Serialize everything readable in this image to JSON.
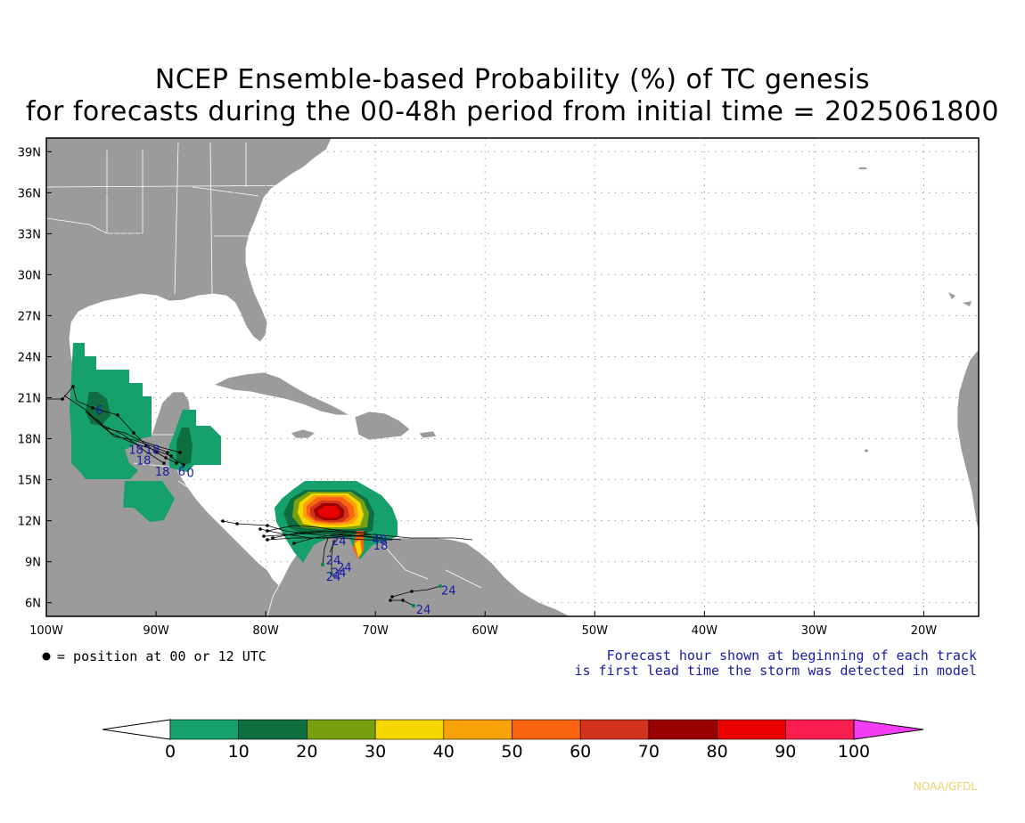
{
  "title": {
    "line1": "NCEP Ensemble-based Probability (%) of TC genesis",
    "line2": "for forecasts during the 00-48h period from initial time = 2025061800"
  },
  "map": {
    "lon_range": [
      -100,
      -15
    ],
    "lat_range": [
      5,
      40
    ],
    "lat_labels": [
      "39N",
      "36N",
      "33N",
      "30N",
      "27N",
      "24N",
      "21N",
      "18N",
      "15N",
      "12N",
      "9N",
      "6N"
    ],
    "lat_values": [
      39,
      36,
      33,
      30,
      27,
      24,
      21,
      18,
      15,
      12,
      9,
      6
    ],
    "lon_labels": [
      "100W",
      "90W",
      "80W",
      "70W",
      "60W",
      "50W",
      "40W",
      "30W",
      "20W"
    ],
    "lon_values": [
      -100,
      -90,
      -80,
      -70,
      -60,
      -50,
      -40,
      -30,
      -20
    ],
    "colors": {
      "land": "#9b9b9b",
      "ocean": "#ffffff",
      "border": "#ffffff",
      "grid": "#a0a0a0"
    }
  },
  "legend_note": "= position at 00 or 12 UTC",
  "forecast_note": {
    "line1": "Forecast hour shown at beginning of each track",
    "line2": "is first lead time the storm was detected in model"
  },
  "forecast_hour_labels": [
    {
      "text": "18",
      "lon": -92.5,
      "lat": 16.9
    },
    {
      "text": "18",
      "lon": -91.8,
      "lat": 16.1
    },
    {
      "text": "18",
      "lon": -91.0,
      "lat": 16.9
    },
    {
      "text": "18",
      "lon": -90.1,
      "lat": 15.3
    },
    {
      "text": "6",
      "lon": -95.5,
      "lat": 19.8
    },
    {
      "text": "6",
      "lon": -88.0,
      "lat": 15.3
    },
    {
      "text": "0",
      "lon": -87.2,
      "lat": 15.2
    },
    {
      "text": "24",
      "lon": -74.0,
      "lat": 10.2
    },
    {
      "text": "24",
      "lon": -74.5,
      "lat": 8.8
    },
    {
      "text": "24",
      "lon": -74.0,
      "lat": 7.9
    },
    {
      "text": "24",
      "lon": -73.5,
      "lat": 8.3
    },
    {
      "text": "24",
      "lon": -74.5,
      "lat": 7.6
    },
    {
      "text": "48",
      "lon": -70.3,
      "lat": 10.3
    },
    {
      "text": "18",
      "lon": -70.2,
      "lat": 9.9
    },
    {
      "text": "24",
      "lon": -64.0,
      "lat": 6.6
    },
    {
      "text": "24",
      "lon": -66.3,
      "lat": 5.2
    }
  ],
  "colorbar": {
    "ticks": [
      "0",
      "10",
      "20",
      "30",
      "40",
      "50",
      "60",
      "70",
      "80",
      "90",
      "100"
    ],
    "colors": [
      "#16a06c",
      "#0f6e40",
      "#76a010",
      "#f5d800",
      "#faa20a",
      "#fa6410",
      "#d2321e",
      "#9b0000",
      "#eb0000",
      "#fa1e50",
      "#f53cf5"
    ]
  },
  "credit": "NOAA/GFDL"
}
